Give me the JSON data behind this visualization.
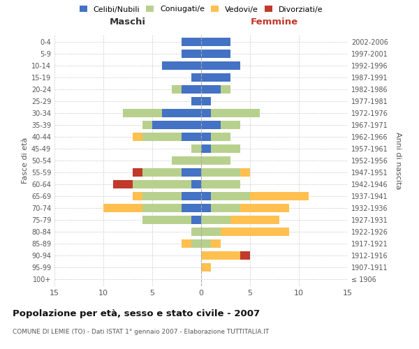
{
  "age_groups": [
    "100+",
    "95-99",
    "90-94",
    "85-89",
    "80-84",
    "75-79",
    "70-74",
    "65-69",
    "60-64",
    "55-59",
    "50-54",
    "45-49",
    "40-44",
    "35-39",
    "30-34",
    "25-29",
    "20-24",
    "15-19",
    "10-14",
    "5-9",
    "0-4"
  ],
  "birth_years": [
    "≤ 1906",
    "1907-1911",
    "1912-1916",
    "1917-1921",
    "1922-1926",
    "1927-1931",
    "1932-1936",
    "1937-1941",
    "1942-1946",
    "1947-1951",
    "1952-1956",
    "1957-1961",
    "1962-1966",
    "1967-1971",
    "1972-1976",
    "1977-1981",
    "1982-1986",
    "1987-1991",
    "1992-1996",
    "1997-2001",
    "2002-2006"
  ],
  "male": {
    "celibi": [
      0,
      0,
      0,
      0,
      0,
      1,
      2,
      2,
      1,
      2,
      0,
      0,
      2,
      5,
      4,
      1,
      2,
      1,
      4,
      2,
      2
    ],
    "coniugati": [
      0,
      0,
      0,
      1,
      1,
      5,
      4,
      4,
      6,
      4,
      3,
      1,
      4,
      1,
      4,
      0,
      1,
      0,
      0,
      0,
      0
    ],
    "vedovi": [
      0,
      0,
      0,
      1,
      0,
      0,
      4,
      1,
      0,
      0,
      0,
      0,
      1,
      0,
      0,
      0,
      0,
      0,
      0,
      0,
      0
    ],
    "divorziati": [
      0,
      0,
      0,
      0,
      0,
      0,
      0,
      0,
      2,
      1,
      0,
      0,
      0,
      0,
      0,
      0,
      0,
      0,
      0,
      0,
      0
    ]
  },
  "female": {
    "nubili": [
      0,
      0,
      0,
      0,
      0,
      0,
      1,
      1,
      0,
      0,
      0,
      1,
      1,
      2,
      1,
      1,
      2,
      3,
      4,
      3,
      3
    ],
    "coniugate": [
      0,
      0,
      0,
      1,
      2,
      3,
      3,
      4,
      4,
      4,
      3,
      3,
      2,
      2,
      5,
      0,
      1,
      0,
      0,
      0,
      0
    ],
    "vedove": [
      0,
      1,
      4,
      1,
      7,
      5,
      5,
      6,
      0,
      1,
      0,
      0,
      0,
      0,
      0,
      0,
      0,
      0,
      0,
      0,
      0
    ],
    "divorziate": [
      0,
      0,
      1,
      0,
      0,
      0,
      0,
      0,
      0,
      0,
      0,
      0,
      0,
      0,
      0,
      0,
      0,
      0,
      0,
      0,
      0
    ]
  },
  "colors": {
    "celibi": "#4472c4",
    "coniugati": "#b8d08d",
    "vedovi": "#ffc050",
    "divorziati": "#c0392b"
  },
  "title": "Popolazione per età, sesso e stato civile - 2007",
  "subtitle": "COMUNE DI LEMIE (TO) - Dati ISTAT 1° gennaio 2007 - Elaborazione TUTTITALIA.IT",
  "xlabel_left": "Maschi",
  "xlabel_right": "Femmine",
  "ylabel_left": "Fasce di età",
  "ylabel_right": "Anni di nascita",
  "xlim": 15,
  "background_color": "#ffffff",
  "grid_color": "#cccccc"
}
